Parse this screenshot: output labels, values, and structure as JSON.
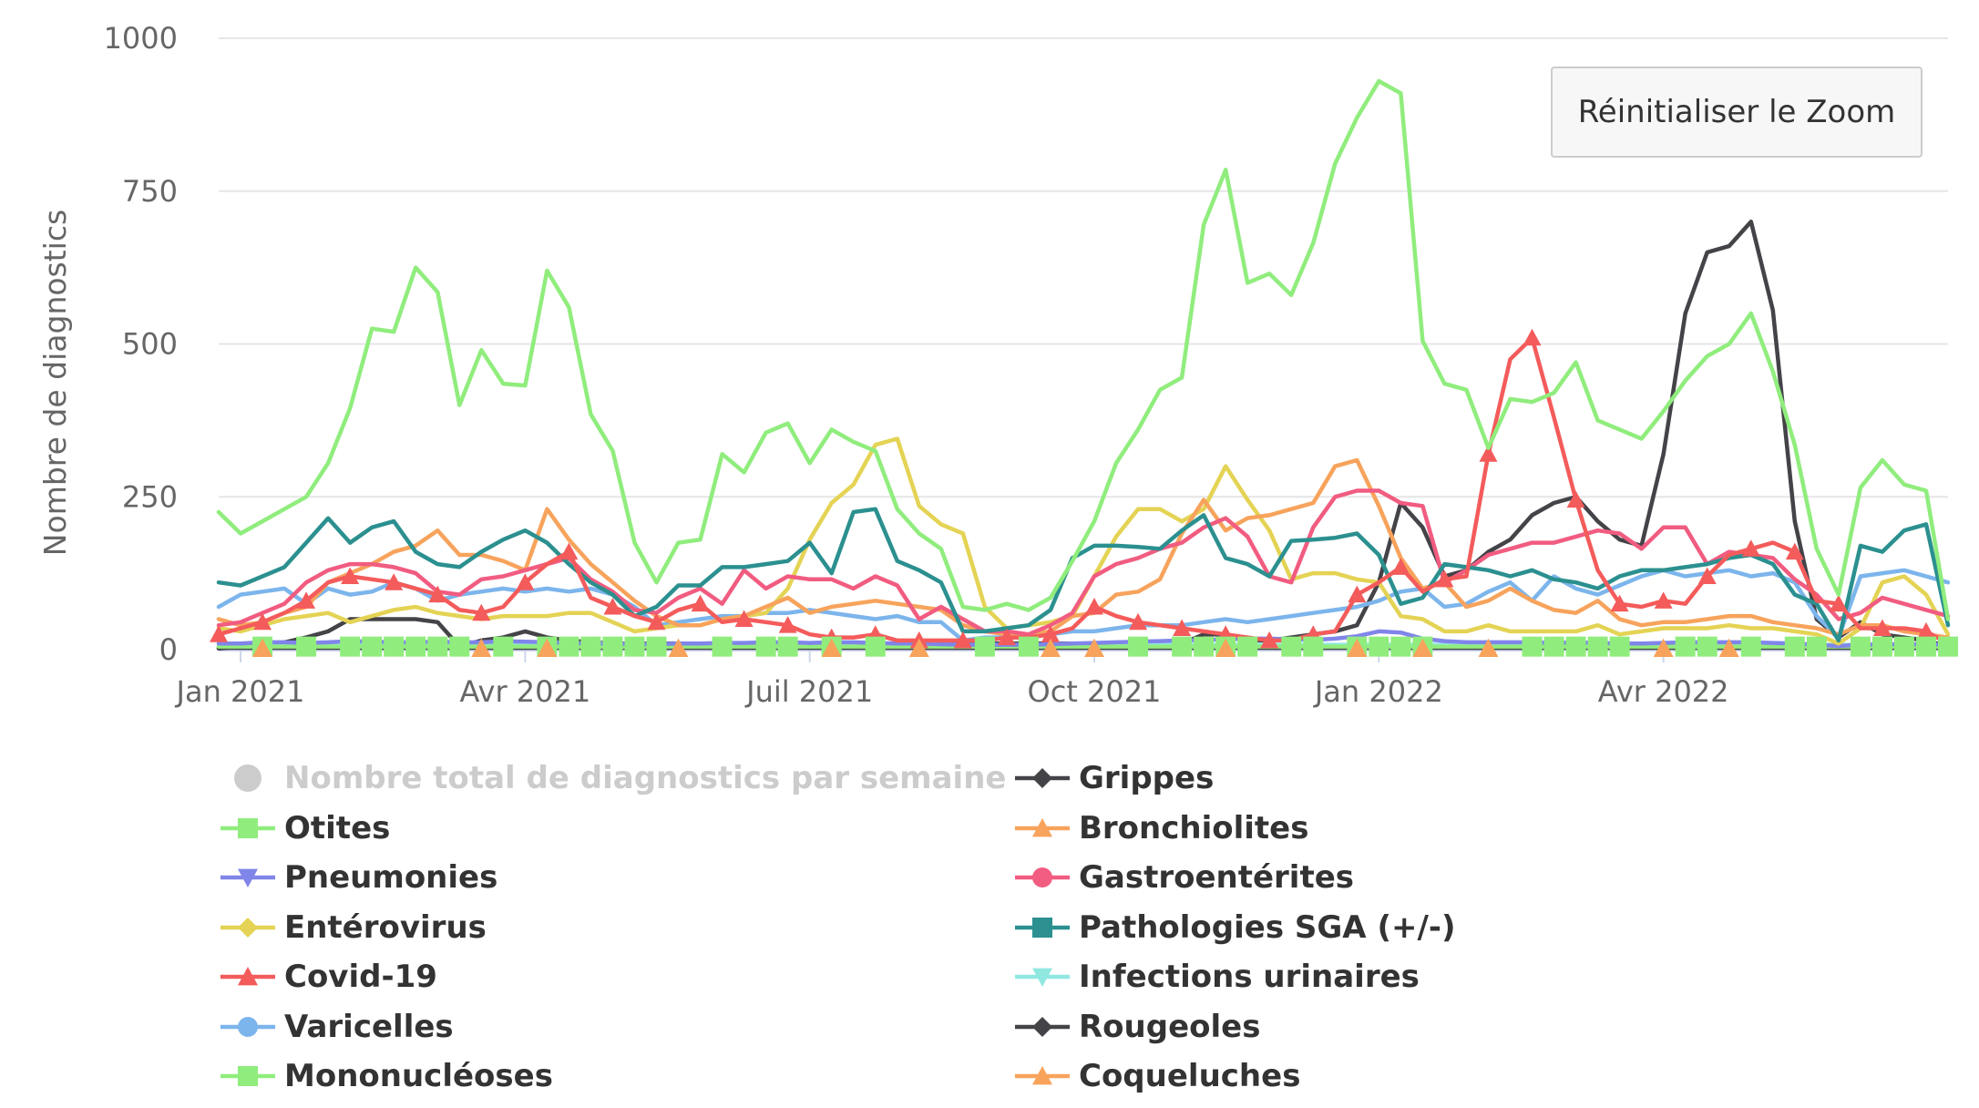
{
  "reset_button": {
    "label": "Réinitialiser le Zoom"
  },
  "chart_data": {
    "type": "line",
    "title": "",
    "xlabel": "",
    "ylabel": "Nombre de diagnostics",
    "ylim": [
      0,
      1000
    ],
    "yticks": [
      "0",
      "250",
      "500",
      "750",
      "1000"
    ],
    "xticks": [
      {
        "label": "Jan 2021",
        "week": 1
      },
      {
        "label": "Avr 2021",
        "week": 14
      },
      {
        "label": "Juil 2021",
        "week": 27
      },
      {
        "label": "Oct 2021",
        "week": 40
      },
      {
        "label": "Jan 2022",
        "week": 53
      },
      {
        "label": "Avr 2022",
        "week": 66
      }
    ],
    "x_unit": "week index (0 = 28 déc. 2020)",
    "series": [
      {
        "name": "Nombre total de diagnostics par semaine",
        "color": "#cccccc",
        "marker": "circle",
        "visible": false,
        "values": []
      },
      {
        "name": "Otites",
        "color": "#90ed7d",
        "marker": "square",
        "values": [
          225,
          190,
          210,
          230,
          250,
          305,
          395,
          525,
          520,
          625,
          585,
          400,
          490,
          435,
          432,
          620,
          560,
          385,
          325,
          175,
          110,
          175,
          180,
          320,
          290,
          355,
          370,
          305,
          360,
          340,
          325,
          230,
          190,
          165,
          70,
          65,
          75,
          65,
          85,
          145,
          210,
          305,
          360,
          425,
          445,
          695,
          785,
          600,
          615,
          580,
          665,
          795,
          870,
          930,
          910,
          505,
          435,
          425,
          330,
          410,
          405,
          420,
          470,
          375,
          360,
          345,
          390,
          440,
          480,
          500,
          550,
          455,
          335,
          165,
          90,
          265,
          310,
          270,
          260,
          50
        ]
      },
      {
        "name": "Pneumonies",
        "color": "#8085e9",
        "marker": "triangle-down",
        "values": [
          10,
          10,
          12,
          12,
          11,
          12,
          14,
          13,
          12,
          12,
          13,
          12,
          12,
          14,
          13,
          12,
          11,
          10,
          10,
          9,
          9,
          10,
          10,
          11,
          11,
          12,
          12,
          11,
          12,
          12,
          11,
          10,
          10,
          9,
          8,
          8,
          8,
          8,
          9,
          10,
          11,
          12,
          13,
          14,
          15,
          16,
          17,
          18,
          18,
          17,
          16,
          18,
          22,
          30,
          28,
          18,
          14,
          12,
          12,
          12,
          12,
          11,
          12,
          11,
          10,
          10,
          11,
          12,
          12,
          12,
          12,
          11,
          10,
          8,
          6,
          8,
          9,
          9,
          9,
          8
        ]
      },
      {
        "name": "Entérovirus",
        "color": "#e4d354",
        "marker": "diamond",
        "values": [
          35,
          30,
          40,
          50,
          55,
          60,
          45,
          55,
          65,
          70,
          60,
          55,
          50,
          55,
          55,
          55,
          60,
          60,
          45,
          30,
          35,
          40,
          40,
          50,
          55,
          60,
          100,
          180,
          240,
          270,
          335,
          345,
          235,
          205,
          190,
          70,
          35,
          40,
          45,
          55,
          120,
          185,
          230,
          230,
          210,
          230,
          300,
          245,
          195,
          115,
          125,
          125,
          115,
          110,
          55,
          50,
          30,
          30,
          40,
          30,
          30,
          30,
          30,
          40,
          25,
          30,
          35,
          35,
          35,
          40,
          35,
          35,
          30,
          25,
          10,
          35,
          110,
          120,
          90,
          25
        ]
      },
      {
        "name": "Covid-19",
        "color": "#f45b5b",
        "marker": "triangle",
        "values": [
          25,
          35,
          45,
          60,
          80,
          110,
          120,
          115,
          110,
          100,
          90,
          65,
          60,
          70,
          110,
          140,
          160,
          85,
          70,
          55,
          45,
          65,
          75,
          45,
          50,
          45,
          40,
          25,
          20,
          20,
          25,
          15,
          15,
          15,
          15,
          15,
          20,
          20,
          25,
          35,
          70,
          55,
          45,
          40,
          35,
          30,
          25,
          20,
          15,
          15,
          25,
          30,
          90,
          110,
          135,
          95,
          115,
          120,
          320,
          475,
          510,
          380,
          245,
          130,
          75,
          70,
          80,
          75,
          120,
          155,
          165,
          175,
          160,
          80,
          75,
          35,
          35,
          35,
          30,
          10
        ]
      },
      {
        "name": "Varicelles",
        "color": "#7cb5ec",
        "marker": "circle",
        "values": [
          70,
          90,
          95,
          100,
          75,
          100,
          90,
          95,
          110,
          100,
          80,
          90,
          95,
          100,
          95,
          100,
          95,
          100,
          90,
          70,
          40,
          45,
          50,
          55,
          55,
          60,
          60,
          65,
          60,
          55,
          50,
          55,
          45,
          45,
          15,
          20,
          20,
          20,
          25,
          30,
          30,
          35,
          40,
          40,
          40,
          45,
          50,
          45,
          50,
          55,
          60,
          65,
          70,
          80,
          95,
          100,
          70,
          75,
          95,
          110,
          80,
          120,
          100,
          90,
          105,
          120,
          130,
          120,
          125,
          130,
          120,
          125,
          110,
          55,
          20,
          120,
          125,
          130,
          120,
          110
        ]
      },
      {
        "name": "Mononucléoses",
        "color": "#90ed7d",
        "marker": "square",
        "values": [
          5,
          5,
          5,
          5,
          5,
          5,
          5,
          5,
          5,
          5,
          5,
          5,
          5,
          5,
          5,
          5,
          5,
          5,
          5,
          5,
          5,
          5,
          5,
          5,
          5,
          5,
          5,
          5,
          5,
          5,
          5,
          5,
          5,
          5,
          5,
          5,
          5,
          5,
          5,
          5,
          5,
          5,
          5,
          5,
          5,
          5,
          5,
          5,
          5,
          5,
          5,
          5,
          5,
          5,
          5,
          5,
          5,
          5,
          5,
          5,
          5,
          5,
          5,
          5,
          5,
          5,
          5,
          5,
          5,
          5,
          5,
          5,
          5,
          5,
          5,
          5,
          5,
          5,
          5,
          5
        ]
      },
      {
        "name": "Grippes",
        "color": "#434348",
        "marker": "diamond",
        "values": [
          3,
          3,
          3,
          3,
          3,
          3,
          3,
          3,
          3,
          3,
          3,
          3,
          3,
          3,
          3,
          3,
          3,
          3,
          3,
          3,
          3,
          3,
          3,
          3,
          3,
          3,
          3,
          3,
          3,
          3,
          3,
          3,
          3,
          3,
          3,
          3,
          3,
          3,
          3,
          3,
          3,
          3,
          3,
          3,
          3,
          3,
          3,
          3,
          3,
          3,
          3,
          3,
          3,
          3,
          3,
          3,
          3,
          3,
          3,
          3,
          3,
          3,
          3,
          3,
          3,
          3,
          3,
          3,
          3,
          3,
          3,
          3,
          3,
          3,
          3,
          3,
          3,
          3,
          3,
          3
        ]
      },
      {
        "name": "Bronchiolites",
        "color": "#f7a35c",
        "marker": "triangle",
        "values": [
          50,
          40,
          45,
          60,
          70,
          110,
          125,
          140,
          160,
          170,
          195,
          155,
          155,
          145,
          130,
          230,
          180,
          140,
          110,
          80,
          55,
          40,
          40,
          50,
          55,
          70,
          85,
          60,
          70,
          75,
          80,
          75,
          70,
          65,
          40,
          30,
          25,
          25,
          30,
          55,
          60,
          90,
          95,
          115,
          190,
          245,
          195,
          215,
          220,
          230,
          240,
          300,
          310,
          235,
          150,
          100,
          110,
          70,
          80,
          100,
          80,
          65,
          60,
          80,
          50,
          40,
          45,
          45,
          50,
          55,
          55,
          45,
          40,
          35,
          25,
          40,
          40,
          30,
          25,
          20
        ]
      },
      {
        "name": "Gastroentérites",
        "color": "#f15c80",
        "marker": "circle",
        "values": [
          40,
          45,
          60,
          75,
          110,
          130,
          140,
          140,
          135,
          125,
          95,
          90,
          115,
          120,
          130,
          140,
          150,
          115,
          95,
          65,
          60,
          85,
          100,
          75,
          130,
          100,
          120,
          115,
          115,
          100,
          120,
          105,
          50,
          70,
          50,
          30,
          30,
          25,
          40,
          60,
          120,
          140,
          150,
          165,
          175,
          200,
          215,
          185,
          120,
          110,
          200,
          250,
          260,
          260,
          240,
          235,
          110,
          130,
          155,
          165,
          175,
          175,
          185,
          195,
          190,
          165,
          200,
          200,
          140,
          160,
          155,
          150,
          115,
          90,
          50,
          60,
          85,
          75,
          65,
          55
        ]
      },
      {
        "name": "Pathologies SGA (+/-)",
        "color": "#2b908f",
        "marker": "square",
        "values": [
          110,
          105,
          120,
          135,
          175,
          215,
          175,
          200,
          210,
          160,
          140,
          135,
          160,
          180,
          195,
          175,
          140,
          110,
          90,
          55,
          70,
          105,
          105,
          135,
          135,
          140,
          145,
          175,
          125,
          225,
          230,
          145,
          130,
          110,
          30,
          30,
          35,
          40,
          65,
          150,
          170,
          170,
          168,
          165,
          195,
          220,
          150,
          140,
          120,
          178,
          180,
          183,
          190,
          155,
          75,
          85,
          140,
          135,
          130,
          120,
          130,
          115,
          110,
          100,
          120,
          130,
          130,
          135,
          140,
          150,
          155,
          140,
          90,
          75,
          15,
          170,
          160,
          195,
          205,
          40
        ]
      },
      {
        "name": "Infections urinaires",
        "color": "#91e8e1",
        "marker": "triangle-down",
        "values": [
          8,
          8,
          8,
          8,
          8,
          8,
          8,
          8,
          8,
          8,
          8,
          8,
          8,
          8,
          8,
          8,
          8,
          8,
          8,
          8,
          8,
          8,
          8,
          8,
          8,
          8,
          8,
          8,
          8,
          8,
          8,
          8,
          8,
          8,
          8,
          8,
          8,
          8,
          8,
          8,
          8,
          8,
          8,
          8,
          8,
          8,
          8,
          8,
          8,
          8,
          8,
          8,
          8,
          8,
          8,
          8,
          8,
          8,
          8,
          8,
          8,
          8,
          8,
          8,
          8,
          8,
          8,
          8,
          8,
          8,
          8,
          8,
          8,
          8,
          8,
          8,
          8,
          8,
          8,
          8
        ]
      },
      {
        "name": "Rougeoles",
        "color": "#434348",
        "marker": "diamond",
        "values": [
          2,
          5,
          8,
          12,
          20,
          30,
          50,
          50,
          50,
          50,
          45,
          5,
          15,
          20,
          30,
          20,
          15,
          12,
          10,
          10,
          10,
          10,
          10,
          10,
          10,
          10,
          10,
          10,
          10,
          10,
          10,
          10,
          10,
          10,
          10,
          10,
          10,
          10,
          10,
          10,
          10,
          10,
          10,
          10,
          10,
          25,
          25,
          15,
          15,
          20,
          25,
          30,
          40,
          110,
          240,
          200,
          120,
          130,
          160,
          180,
          220,
          240,
          250,
          210,
          180,
          170,
          320,
          550,
          650,
          660,
          700,
          555,
          210,
          50,
          20,
          45,
          25,
          20,
          15,
          5
        ]
      },
      {
        "name": "Coqueluches",
        "color": "#f7a35c",
        "marker": "triangle",
        "values": [
          2,
          2,
          2,
          2,
          2,
          2,
          2,
          2,
          2,
          2,
          2,
          2,
          2,
          2,
          2,
          2,
          2,
          2,
          2,
          2,
          2,
          2,
          2,
          2,
          2,
          2,
          2,
          2,
          2,
          2,
          2,
          2,
          2,
          2,
          2,
          2,
          2,
          2,
          2,
          2,
          2,
          2,
          2,
          2,
          2,
          2,
          2,
          2,
          2,
          2,
          2,
          2,
          2,
          2,
          2,
          2,
          2,
          2,
          2,
          2,
          2,
          2,
          2,
          2,
          2,
          2,
          2,
          2,
          2,
          2,
          2,
          2,
          2,
          2,
          2,
          2,
          2,
          2,
          2,
          2
        ]
      }
    ],
    "marker_weeks": {
      "Otites": [],
      "Covid-19": [
        0,
        2,
        4,
        6,
        8,
        10,
        12,
        14,
        16,
        18,
        20,
        22,
        24,
        26,
        28,
        30,
        32,
        34,
        36,
        38,
        40,
        42,
        44,
        46,
        48,
        50,
        52,
        54,
        56,
        58,
        60,
        62,
        64,
        66,
        68,
        70,
        72,
        74,
        76,
        78
      ],
      "Mononucléoses": [
        2,
        4,
        6,
        7,
        8,
        9,
        10,
        11,
        13,
        15,
        16,
        17,
        18,
        19,
        20,
        23,
        25,
        26,
        28,
        30,
        35,
        37,
        42,
        44,
        45,
        46,
        47,
        49,
        50,
        52,
        53,
        54,
        55,
        60,
        61,
        62,
        63,
        64,
        67,
        68,
        70,
        72,
        73,
        75,
        76,
        77,
        78,
        79
      ],
      "Bronchiolites": [
        2,
        12,
        15,
        21,
        28,
        32,
        38,
        40,
        46,
        52,
        55,
        58,
        66,
        69
      ]
    }
  }
}
